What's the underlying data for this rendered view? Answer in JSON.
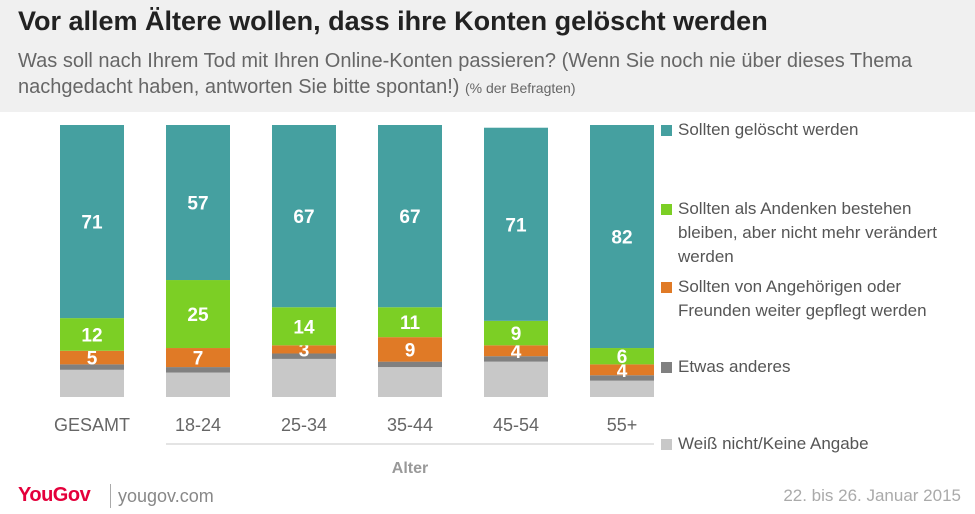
{
  "header": {
    "title": "Vor allem Ältere wollen, dass ihre Konten gelöscht werden",
    "subtitle": "Was soll nach Ihrem Tod mit Ihren Online-Konten passieren? (Wenn Sie noch nie über dieses Thema nachgedacht haben, antworten Sie bitte spontan!)",
    "subtitle_note": "(% der Befragten)"
  },
  "chart_data": {
    "type": "bar",
    "stacked": true,
    "orientation": "vertical",
    "ylim": [
      0,
      100
    ],
    "categories": [
      "GESAMT",
      "18-24",
      "25-34",
      "35-44",
      "45-54",
      "55+"
    ],
    "group_label": "Alter",
    "series": [
      {
        "name": "Weiß nicht/Keine Angabe",
        "color": "#c8c8c8",
        "values": [
          10,
          9,
          14,
          11,
          13,
          6
        ],
        "labels": [
          "",
          "",
          "",
          "",
          "",
          ""
        ]
      },
      {
        "name": "Etwas anderes",
        "color": "#808080",
        "values": [
          2,
          2,
          2,
          2,
          2,
          2
        ],
        "labels": [
          "",
          "",
          "",
          "",
          "",
          ""
        ]
      },
      {
        "name": "Sollten von Angehörigen oder Freunden weiter gepflegt werden",
        "color": "#e07a26",
        "values": [
          5,
          7,
          3,
          9,
          4,
          4
        ],
        "labels": [
          "5",
          "7",
          "3",
          "9",
          "4",
          "4"
        ]
      },
      {
        "name": "Sollten als Andenken bestehen bleiben, aber nicht mehr verändert werden",
        "color": "#7ccf25",
        "values": [
          12,
          25,
          14,
          11,
          9,
          6
        ],
        "labels": [
          "12",
          "25",
          "14",
          "11",
          "9",
          "6"
        ]
      },
      {
        "name": "Sollten gelöscht werden",
        "color": "#45a0a0",
        "values": [
          71,
          57,
          67,
          67,
          71,
          82
        ],
        "labels": [
          "71",
          "57",
          "67",
          "67",
          "71",
          "82"
        ]
      }
    ]
  },
  "legend": [
    {
      "label": "Sollten gelöscht werden",
      "color": "#45a0a0"
    },
    {
      "label": "Sollten als Andenken bestehen bleiben, aber nicht mehr verändert werden",
      "color": "#7ccf25"
    },
    {
      "label": "Sollten von Angehörigen oder Freunden weiter gepflegt werden",
      "color": "#e07a26"
    },
    {
      "label": "Etwas anderes",
      "color": "#808080"
    },
    {
      "label": "Weiß nicht/Keine Angabe",
      "color": "#c8c8c8"
    }
  ],
  "footer": {
    "logo": "YouGov",
    "website": "yougov.com",
    "date": "22. bis 26. Januar 2015"
  }
}
